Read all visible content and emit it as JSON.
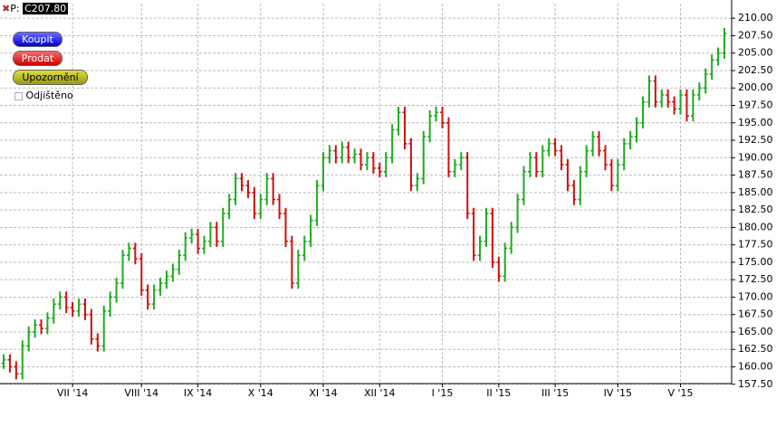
{
  "ui": {
    "price_prefix": "P:",
    "price_box": "C207.80",
    "buttons": [
      "Koupit",
      "Prodat",
      "Upozornění"
    ],
    "checkbox": "Odjištěno"
  },
  "chart_data": {
    "type": "ohlc",
    "up_color": "#1faa1f",
    "down_color": "#cc1010",
    "grid": true,
    "categories": [
      null,
      null,
      null,
      null,
      null,
      null,
      null,
      null,
      null,
      null,
      null,
      "VII '14",
      null,
      null,
      null,
      null,
      null,
      null,
      null,
      null,
      null,
      null,
      "VIII '14",
      null,
      null,
      null,
      null,
      null,
      null,
      null,
      null,
      "IX '14",
      null,
      null,
      null,
      null,
      null,
      null,
      null,
      null,
      null,
      "X '14",
      null,
      null,
      null,
      null,
      null,
      null,
      null,
      null,
      null,
      "XI '14",
      null,
      null,
      null,
      null,
      null,
      null,
      null,
      null,
      "XII '14",
      null,
      null,
      null,
      null,
      null,
      null,
      null,
      null,
      null,
      "I '15",
      null,
      null,
      null,
      null,
      null,
      null,
      null,
      null,
      "II '15",
      null,
      null,
      null,
      null,
      null,
      null,
      null,
      null,
      "III '15",
      null,
      null,
      null,
      null,
      null,
      null,
      null,
      null,
      null,
      "IV '15",
      null,
      null,
      null,
      null,
      null,
      null,
      null,
      null,
      null,
      "V '15",
      null,
      null,
      null,
      null,
      null,
      null,
      null
    ],
    "open": [
      160.5,
      161,
      160,
      159,
      163,
      165,
      166,
      165.5,
      167,
      169,
      170,
      168.5,
      168,
      169,
      167.5,
      164,
      163,
      168,
      170,
      172,
      176,
      177,
      175.5,
      171,
      169,
      171,
      172,
      173,
      174,
      176,
      178.5,
      179,
      177,
      178,
      180,
      178,
      182,
      184,
      187,
      186,
      185,
      182,
      184,
      187,
      184,
      182,
      178,
      172,
      176,
      178,
      181,
      186,
      190,
      191,
      190,
      191.5,
      190,
      190.5,
      189,
      190,
      188.5,
      188,
      190,
      194,
      196.5,
      192,
      186,
      187,
      193,
      196,
      196.5,
      195,
      188,
      189,
      190,
      182,
      176,
      178,
      182,
      175,
      173,
      177,
      180,
      184,
      188,
      190,
      188,
      191,
      192,
      191,
      189,
      186,
      184,
      188,
      191,
      193,
      191,
      189,
      186,
      189,
      192,
      193,
      195,
      198,
      201,
      198,
      199,
      198,
      197,
      199,
      196,
      199,
      200,
      202,
      204,
      205
    ],
    "high": [
      161.8,
      161.8,
      160.8,
      163.8,
      165.8,
      166.8,
      166.8,
      167.8,
      169.8,
      170.8,
      170.8,
      169.3,
      169.8,
      169.8,
      168.3,
      164.8,
      168.8,
      170.8,
      172.8,
      176.8,
      177.8,
      177.8,
      176.3,
      171.8,
      171.8,
      172.8,
      173.8,
      174.8,
      176.8,
      179.3,
      179.8,
      179.8,
      178.8,
      180.8,
      180.8,
      182.8,
      184.8,
      187.8,
      187.8,
      186.8,
      185.8,
      184.8,
      187.8,
      187.8,
      184.8,
      182.8,
      178.8,
      176.8,
      178.8,
      181.8,
      186.8,
      190.8,
      191.8,
      191.8,
      192.3,
      192.3,
      191.3,
      191.3,
      190.8,
      190.8,
      189.3,
      190.8,
      194.8,
      197.3,
      197.3,
      192.8,
      187.8,
      193.8,
      196.8,
      197.3,
      197.3,
      195.8,
      189.8,
      190.8,
      190.8,
      182.8,
      178.8,
      182.8,
      182.8,
      175.8,
      177.8,
      180.8,
      184.8,
      188.8,
      190.8,
      190.8,
      191.8,
      192.8,
      192.8,
      191.8,
      189.8,
      186.8,
      188.8,
      191.8,
      193.8,
      193.8,
      191.8,
      189.8,
      189.8,
      192.8,
      193.8,
      195.8,
      198.8,
      201.8,
      201.8,
      199.8,
      199.8,
      198.8,
      199.8,
      199.8,
      199.8,
      200.8,
      202.8,
      204.8,
      205.8,
      208.6
    ],
    "low": [
      159.7,
      159.2,
      158.2,
      158.2,
      162.2,
      164.2,
      164.7,
      164.7,
      166.2,
      168.2,
      167.7,
      167.2,
      167.2,
      166.7,
      163.2,
      162.2,
      162.2,
      167.2,
      169.2,
      171.2,
      175.2,
      174.7,
      170.2,
      168.2,
      168.2,
      170.2,
      171.2,
      172.2,
      173.2,
      175.2,
      177.7,
      176.2,
      176.2,
      177.2,
      177.2,
      177.2,
      181.2,
      183.2,
      185.2,
      184.2,
      181.2,
      181.2,
      183.2,
      183.2,
      181.2,
      177.2,
      171.2,
      171.2,
      175.2,
      177.2,
      180.2,
      185.2,
      189.2,
      189.2,
      189.2,
      189.2,
      189.2,
      188.2,
      188.2,
      187.7,
      187.2,
      187.2,
      189.2,
      193.2,
      191.2,
      185.2,
      185.2,
      186.2,
      192.2,
      195.2,
      194.2,
      187.2,
      187.2,
      188.2,
      181.2,
      175.2,
      175.2,
      177.2,
      174.2,
      172.2,
      172.2,
      176.2,
      179.2,
      183.2,
      187.2,
      187.2,
      187.2,
      190.2,
      190.2,
      188.2,
      185.2,
      183.2,
      183.2,
      187.2,
      190.2,
      190.2,
      188.2,
      185.2,
      185.2,
      188.2,
      191.2,
      192.2,
      194.2,
      197.2,
      197.2,
      197.2,
      197.2,
      196.2,
      196.2,
      195.2,
      195.2,
      198.2,
      199.2,
      201.2,
      203.2,
      204.2
    ],
    "close": [
      161,
      160,
      159,
      163,
      165,
      166,
      165.5,
      167,
      169,
      170,
      168.5,
      168,
      169,
      167.5,
      164,
      163,
      168,
      170,
      172,
      176,
      177,
      175.5,
      171,
      169,
      171,
      172,
      173,
      174,
      176,
      178.5,
      179,
      177,
      178,
      180,
      178,
      182,
      184,
      187,
      186,
      185,
      182,
      184,
      187,
      184,
      182,
      178,
      172,
      176,
      178,
      181,
      186,
      190,
      191,
      190,
      191.5,
      190,
      190.5,
      189,
      190,
      188.5,
      188,
      190,
      194,
      196.5,
      192,
      186,
      187,
      193,
      196,
      196.5,
      195,
      188,
      189,
      190,
      182,
      176,
      178,
      182,
      175,
      173,
      177,
      180,
      184,
      188,
      190,
      188,
      191,
      192,
      191,
      189,
      186,
      184,
      188,
      191,
      193,
      191,
      189,
      186,
      189,
      192,
      193,
      195,
      198,
      201,
      198,
      199,
      198,
      197,
      199,
      196,
      199,
      200,
      202,
      204,
      205,
      207.8
    ],
    "ylim": [
      157.6,
      212.1
    ],
    "yticks": [
      {
        "value": 157.5,
        "label": "157.50"
      },
      {
        "value": 160,
        "label": "160.00"
      },
      {
        "value": 162.5,
        "label": "162.50"
      },
      {
        "value": 165,
        "label": "165.00"
      },
      {
        "value": 167.5,
        "label": "167.50"
      },
      {
        "value": 170,
        "label": "170.00"
      },
      {
        "value": 172.5,
        "label": "172.50"
      },
      {
        "value": 175,
        "label": "175.00"
      },
      {
        "value": 177.5,
        "label": "177.50"
      },
      {
        "value": 180,
        "label": "180.00"
      },
      {
        "value": 182.5,
        "label": "182.50"
      },
      {
        "value": 185,
        "label": "185.00"
      },
      {
        "value": 187.5,
        "label": "187.50"
      },
      {
        "value": 190,
        "label": "190.00"
      },
      {
        "value": 192.5,
        "label": "192.50"
      },
      {
        "value": 195,
        "label": "195.00"
      },
      {
        "value": 197.5,
        "label": "197.50"
      },
      {
        "value": 200,
        "label": "200.00"
      },
      {
        "value": 202.5,
        "label": "202.50"
      },
      {
        "value": 205,
        "label": "205.00"
      },
      {
        "value": 207.5,
        "label": "207.50"
      },
      {
        "value": 210,
        "label": "210.00"
      }
    ]
  }
}
